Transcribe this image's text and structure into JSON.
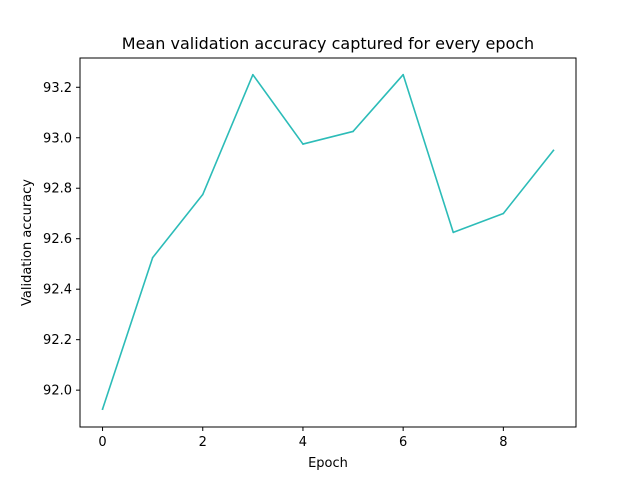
{
  "chart_data": {
    "type": "line",
    "title": "Mean validation accuracy captured for every epoch",
    "xlabel": "Epoch",
    "ylabel": "Validation accuracy",
    "x_ticks": [
      0,
      2,
      4,
      6,
      8
    ],
    "x_tick_labels": [
      "0",
      "2",
      "4",
      "6",
      "8"
    ],
    "y_ticks": [
      92.0,
      92.2,
      92.4,
      92.6,
      92.8,
      93.0,
      93.2
    ],
    "y_tick_labels": [
      "92.0",
      "92.2",
      "92.4",
      "92.6",
      "92.8",
      "93.0",
      "93.2"
    ],
    "xlim": [
      -0.45,
      9.45
    ],
    "ylim": [
      91.854,
      93.316
    ],
    "grid": false,
    "series": [
      {
        "color": "#2cbcb8",
        "x": [
          0,
          1,
          2,
          3,
          4,
          5,
          6,
          7,
          8,
          9
        ],
        "values": [
          91.925,
          92.525,
          92.775,
          93.25,
          92.975,
          93.025,
          93.25,
          92.625,
          92.7,
          92.95
        ]
      }
    ]
  }
}
